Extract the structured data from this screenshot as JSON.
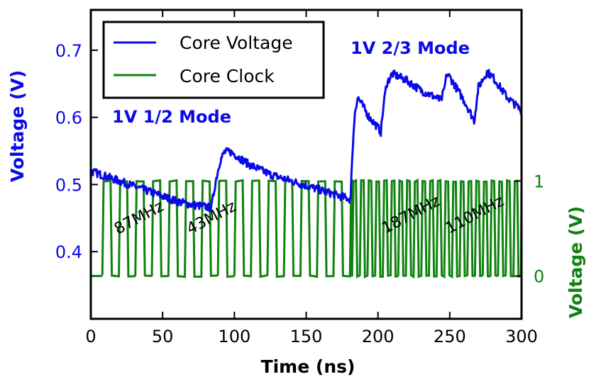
{
  "chart_data": {
    "type": "line",
    "xlabel": "Time (ns)",
    "ylabel_left": "Voltage (V)",
    "ylabel_right": "Voltage (V)",
    "xlim": [
      0,
      300
    ],
    "ylim_left": [
      0.3,
      0.76
    ],
    "ylim_right": [
      -0.45,
      2.8
    ],
    "x_ticks": [
      "0",
      "50",
      "100",
      "150",
      "200",
      "250",
      "300"
    ],
    "y_left_ticks": [
      "0.4",
      "0.5",
      "0.6",
      "0.7"
    ],
    "y_right_ticks": [
      "0",
      "1"
    ],
    "grid": false,
    "legend_position": "top-left",
    "colors": {
      "core_voltage": "#0a0ae6",
      "core_clock": "#0f820f",
      "frame": "#000000"
    },
    "series": [
      {
        "name": "Core Voltage",
        "axis": "left",
        "x": [
          0,
          20,
          40,
          60,
          70,
          80,
          84,
          85,
          87,
          90,
          93,
          97,
          100,
          110,
          125,
          140,
          155,
          170,
          181,
          182,
          184,
          186,
          190,
          194,
          200,
          202,
          204,
          206,
          210,
          220,
          230,
          240,
          244,
          246,
          248,
          250,
          260,
          266,
          267,
          270,
          276,
          280,
          290,
          300
        ],
        "y": [
          0.52,
          0.505,
          0.49,
          0.475,
          0.47,
          0.467,
          0.465,
          0.48,
          0.505,
          0.535,
          0.548,
          0.549,
          0.545,
          0.53,
          0.515,
          0.505,
          0.495,
          0.485,
          0.478,
          0.54,
          0.61,
          0.63,
          0.615,
          0.6,
          0.585,
          0.578,
          0.62,
          0.65,
          0.665,
          0.655,
          0.64,
          0.63,
          0.625,
          0.64,
          0.665,
          0.66,
          0.625,
          0.6,
          0.595,
          0.645,
          0.668,
          0.66,
          0.63,
          0.61
        ]
      },
      {
        "name": "Core Clock",
        "axis": "right",
        "segments": [
          {
            "x_start": 8,
            "x_end": 182,
            "period_ns": 11.5,
            "frequency": "87MHz / 43MHz"
          },
          {
            "x_start": 182,
            "x_end": 300,
            "period_ns": 5.35,
            "frequency": "187MHz / 110MHz"
          }
        ],
        "low": 0,
        "high": 1
      }
    ],
    "annotations": {
      "mode_half": "1V 1/2 Mode",
      "mode_two_thirds": "1V 2/3 Mode",
      "freq_87": "87MHz",
      "freq_43": "43MHz",
      "freq_187": "187MHz",
      "freq_110": "110MHz"
    }
  }
}
